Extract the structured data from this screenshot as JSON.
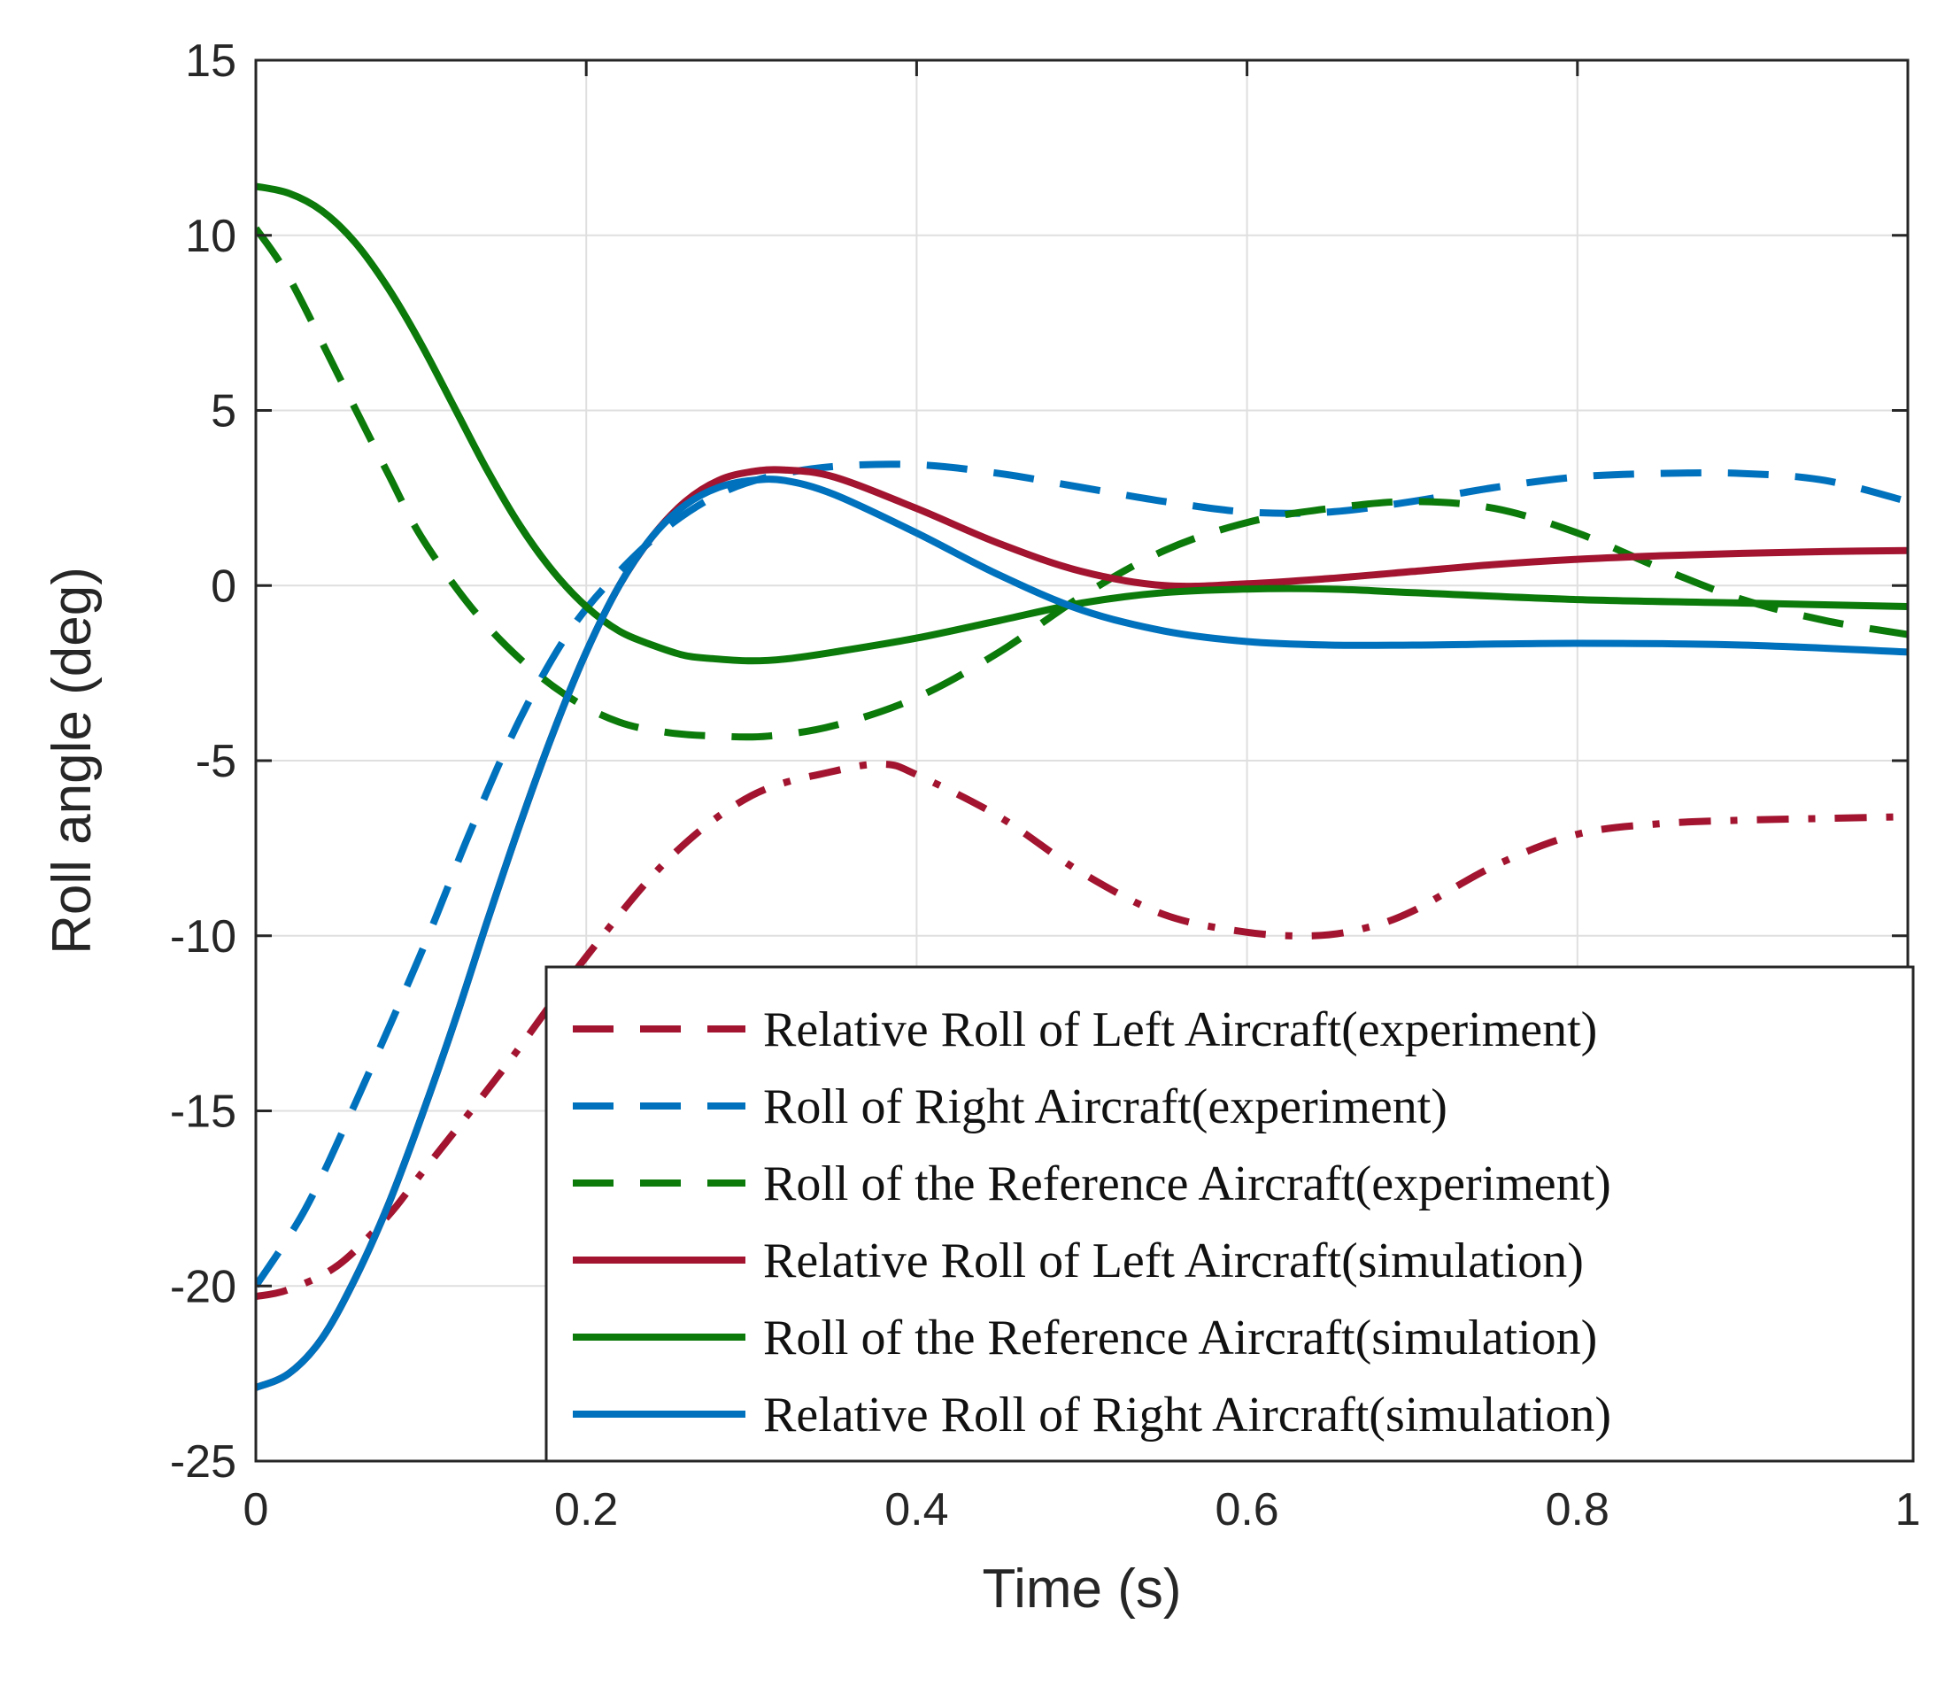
{
  "chart_data": {
    "type": "line",
    "title": "",
    "xlabel": "Time (s)",
    "ylabel": "Roll angle (deg)",
    "xlim": [
      0,
      1
    ],
    "ylim": [
      -25,
      15
    ],
    "grid": true,
    "legend_position": "bottom-right",
    "xticks": [
      0,
      0.2,
      0.4,
      0.6,
      0.8,
      1
    ],
    "xtick_labels": [
      "0",
      "0.2",
      "0.4",
      "0.6",
      "0.8",
      "1"
    ],
    "yticks": [
      -25,
      -20,
      -15,
      -10,
      -5,
      0,
      5,
      10,
      15
    ],
    "ytick_labels": [
      "-25",
      "-20",
      "-15",
      "-10",
      "-5",
      "0",
      "5",
      "10",
      "15"
    ],
    "series": [
      {
        "name": "Relative Roll of Left Aircraft(experiment)",
        "color": "#a2142f",
        "style": "dashdot",
        "x": [
          0,
          0.02,
          0.05,
          0.08,
          0.1,
          0.15,
          0.2,
          0.25,
          0.3,
          0.35,
          0.38,
          0.4,
          0.45,
          0.5,
          0.55,
          0.6,
          0.64,
          0.67,
          0.7,
          0.75,
          0.8,
          0.85,
          0.9,
          0.95,
          1.0
        ],
        "y": [
          -20.3,
          -20.1,
          -19.4,
          -18.0,
          -16.8,
          -13.8,
          -10.6,
          -7.8,
          -6.0,
          -5.3,
          -5.1,
          -5.4,
          -6.6,
          -8.2,
          -9.4,
          -9.9,
          -10.0,
          -9.8,
          -9.3,
          -8.0,
          -7.1,
          -6.8,
          -6.7,
          -6.65,
          -6.6
        ]
      },
      {
        "name": "Roll of Right Aircraft(experiment)",
        "color": "#0072bd",
        "style": "dashed",
        "x": [
          0,
          0.03,
          0.06,
          0.1,
          0.13,
          0.16,
          0.19,
          0.22,
          0.25,
          0.28,
          0.31,
          0.35,
          0.4,
          0.45,
          0.5,
          0.55,
          0.6,
          0.65,
          0.7,
          0.75,
          0.8,
          0.85,
          0.9,
          0.95,
          1.0
        ],
        "y": [
          -20.0,
          -17.8,
          -14.8,
          -10.5,
          -7.0,
          -3.8,
          -1.3,
          0.4,
          1.7,
          2.6,
          3.1,
          3.4,
          3.45,
          3.2,
          2.8,
          2.4,
          2.1,
          2.1,
          2.4,
          2.8,
          3.1,
          3.2,
          3.2,
          3.0,
          2.4
        ]
      },
      {
        "name": "Roll of the Reference Aircraft(experiment)",
        "color": "#0b7a0b",
        "style": "dashed",
        "x": [
          0,
          0.02,
          0.05,
          0.08,
          0.1,
          0.13,
          0.16,
          0.19,
          0.22,
          0.25,
          0.28,
          0.31,
          0.35,
          0.4,
          0.45,
          0.5,
          0.55,
          0.6,
          0.65,
          0.7,
          0.75,
          0.8,
          0.85,
          0.9,
          0.95,
          1.0
        ],
        "y": [
          10.2,
          8.8,
          6.0,
          3.2,
          1.4,
          -0.6,
          -2.1,
          -3.2,
          -3.9,
          -4.2,
          -4.3,
          -4.3,
          -4.0,
          -3.2,
          -1.9,
          -0.3,
          1.0,
          1.8,
          2.2,
          2.4,
          2.2,
          1.5,
          0.5,
          -0.4,
          -1.0,
          -1.4
        ]
      },
      {
        "name": "Relative Roll of Left Aircraft(simulation)",
        "color": "#a2142f",
        "style": "solid",
        "x": [
          0,
          0.02,
          0.04,
          0.06,
          0.08,
          0.1,
          0.12,
          0.14,
          0.16,
          0.18,
          0.2,
          0.22,
          0.24,
          0.26,
          0.28,
          0.3,
          0.32,
          0.35,
          0.4,
          0.45,
          0.5,
          0.55,
          0.6,
          0.65,
          0.7,
          0.75,
          0.8,
          0.85,
          0.9,
          0.95,
          1.0
        ],
        "y": [
          -22.9,
          -22.5,
          -21.5,
          -19.8,
          -17.7,
          -15.2,
          -12.5,
          -9.6,
          -6.8,
          -4.2,
          -1.9,
          0.0,
          1.4,
          2.4,
          3.0,
          3.25,
          3.3,
          3.1,
          2.2,
          1.2,
          0.4,
          0.0,
          0.05,
          0.2,
          0.4,
          0.6,
          0.75,
          0.85,
          0.92,
          0.97,
          1.0
        ]
      },
      {
        "name": "Roll of the Reference Aircraft(simulation)",
        "color": "#0b7a0b",
        "style": "solid",
        "x": [
          0,
          0.02,
          0.04,
          0.06,
          0.08,
          0.1,
          0.12,
          0.14,
          0.16,
          0.18,
          0.2,
          0.22,
          0.24,
          0.26,
          0.28,
          0.3,
          0.32,
          0.35,
          0.4,
          0.45,
          0.5,
          0.55,
          0.6,
          0.65,
          0.7,
          0.8,
          0.9,
          1.0
        ],
        "y": [
          11.4,
          11.2,
          10.7,
          9.8,
          8.5,
          6.9,
          5.1,
          3.3,
          1.7,
          0.4,
          -0.6,
          -1.3,
          -1.7,
          -2.0,
          -2.1,
          -2.15,
          -2.1,
          -1.9,
          -1.5,
          -1.0,
          -0.5,
          -0.2,
          -0.1,
          -0.1,
          -0.2,
          -0.4,
          -0.5,
          -0.6
        ]
      },
      {
        "name": "Relative Roll of Right Aircraft(simulation)",
        "color": "#0072bd",
        "style": "solid",
        "x": [
          0,
          0.02,
          0.04,
          0.06,
          0.08,
          0.1,
          0.12,
          0.14,
          0.16,
          0.18,
          0.2,
          0.22,
          0.24,
          0.26,
          0.28,
          0.3,
          0.32,
          0.35,
          0.4,
          0.45,
          0.5,
          0.55,
          0.6,
          0.65,
          0.7,
          0.8,
          0.9,
          1.0
        ],
        "y": [
          -22.9,
          -22.5,
          -21.5,
          -19.8,
          -17.7,
          -15.2,
          -12.5,
          -9.6,
          -6.8,
          -4.2,
          -1.9,
          0.0,
          1.4,
          2.3,
          2.8,
          3.0,
          3.0,
          2.6,
          1.5,
          0.3,
          -0.7,
          -1.3,
          -1.6,
          -1.7,
          -1.7,
          -1.65,
          -1.7,
          -1.9
        ]
      }
    ]
  }
}
